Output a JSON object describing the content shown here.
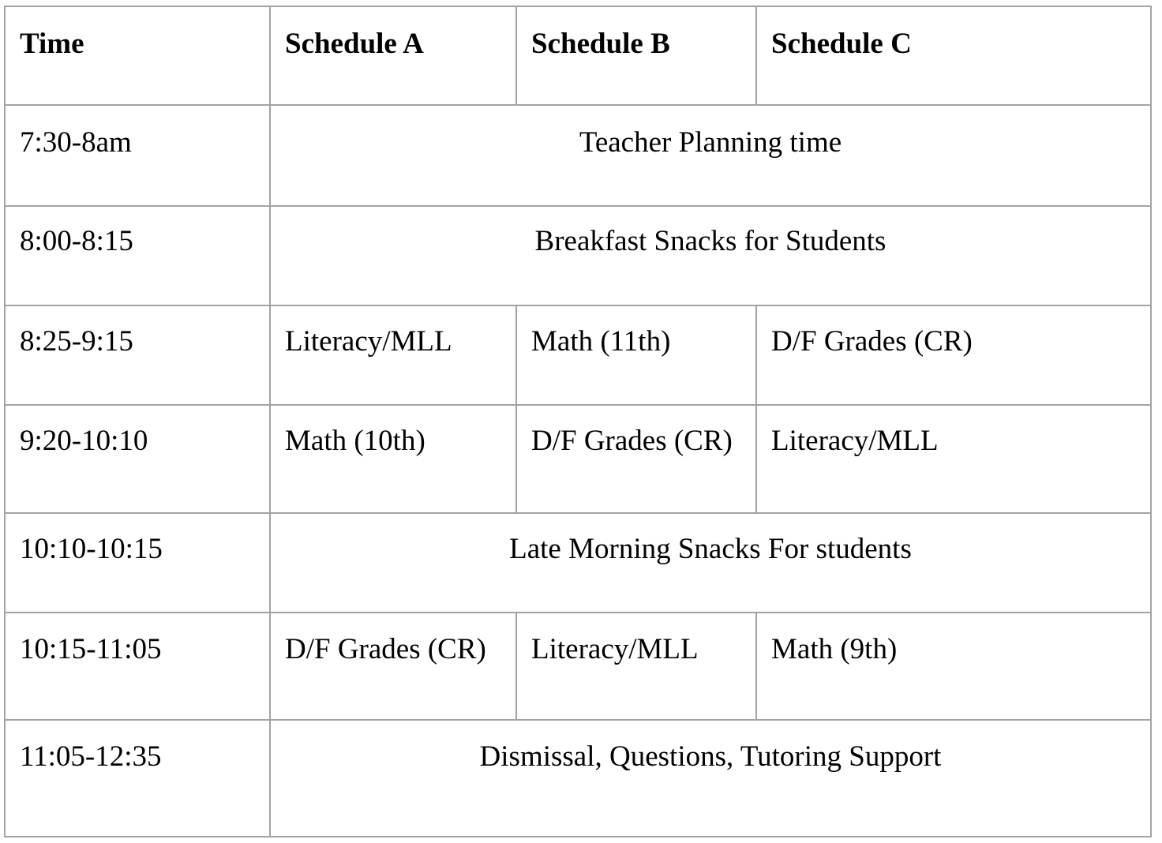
{
  "table": {
    "headers": [
      "Time",
      "Schedule A",
      "Schedule B",
      "Schedule C"
    ],
    "rows": [
      {
        "time": "7:30-8am",
        "span": "Teacher Planning time"
      },
      {
        "time": "8:00-8:15",
        "span": "Breakfast Snacks for Students"
      },
      {
        "time": "8:25-9:15",
        "cells": [
          "Literacy/MLL",
          "Math (11th)",
          "D/F Grades (CR)"
        ]
      },
      {
        "time": "9:20-10:10",
        "cells": [
          "Math (10th)",
          "D/F Grades (CR)",
          "Literacy/MLL"
        ]
      },
      {
        "time": "10:10-10:15",
        "span": "Late Morning Snacks For students"
      },
      {
        "time": "10:15-11:05",
        "cells": [
          "D/F Grades (CR)",
          "Literacy/MLL",
          "Math (9th)"
        ]
      },
      {
        "time": "11:05-12:35",
        "span": "Dismissal, Questions, Tutoring Support"
      }
    ]
  }
}
